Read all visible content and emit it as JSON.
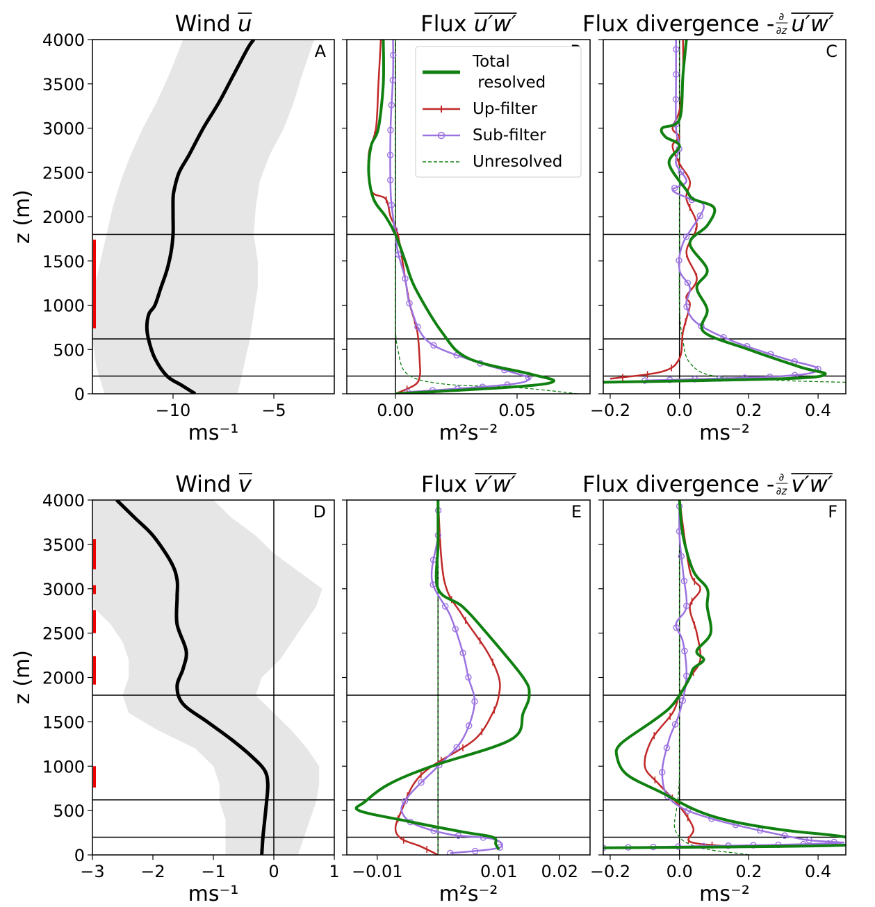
{
  "axis_label_z": "z (m)",
  "legend": {
    "total": "Total",
    "total2": " resolved",
    "up": "Up-filter",
    "sub": "Sub-filter",
    "unres": "Unresolved"
  },
  "colors": {
    "total": "#108010",
    "up": "#c02828",
    "sub": "#9b72e0",
    "unres": "#108010",
    "shade": "#e6e6e6",
    "bar": "#ee0000"
  },
  "hlines_z": [
    1800,
    620,
    200
  ],
  "chart_data": [
    {
      "id": "A",
      "type": "line",
      "title_base": "Wind ",
      "title_sym": "u",
      "xlabel": "ms⁻¹",
      "xlim": [
        -14,
        -2
      ],
      "ylim": [
        0,
        4000
      ],
      "xticks": [
        {
          "v": -10,
          "l": "−10"
        },
        {
          "v": -5,
          "l": "−5"
        }
      ],
      "yticks": [
        0,
        500,
        1000,
        1500,
        2000,
        2500,
        3000,
        3500,
        4000
      ],
      "show_yticks": true,
      "zero_line": false,
      "red_bars": [
        [
          740,
          1740
        ]
      ],
      "shade": {
        "z": [
          0,
          300,
          600,
          900,
          1200,
          1500,
          1800,
          2100,
          2400,
          2700,
          3000,
          3300,
          3600,
          4000
        ],
        "lo": [
          -13.4,
          -13.8,
          -14.0,
          -14.0,
          -13.9,
          -13.6,
          -13.3,
          -13.0,
          -12.6,
          -12.1,
          -11.5,
          -10.8,
          -10.2,
          -9.5
        ],
        "hi": [
          -6.8,
          -6.5,
          -6.2,
          -6.0,
          -5.8,
          -5.8,
          -6.0,
          -5.9,
          -5.7,
          -5.2,
          -4.5,
          -4.0,
          -3.6,
          -3.0
        ]
      },
      "series": [
        {
          "name": "",
          "kind": "mean",
          "x": [
            -8.9,
            -9.6,
            -10.3,
            -10.9,
            -11.2,
            -11.3,
            -11.2,
            -10.9,
            -10.6,
            -10.3,
            -10.1,
            -10.0,
            -10.0,
            -10.0,
            -9.95,
            -9.7,
            -9.2,
            -8.5,
            -7.7,
            -7.0,
            -6.3,
            -6.0
          ],
          "z": [
            0,
            100,
            200,
            400,
            600,
            750,
            900,
            1000,
            1200,
            1400,
            1600,
            1800,
            2000,
            2200,
            2300,
            2500,
            2700,
            3000,
            3300,
            3600,
            3900,
            4000
          ]
        }
      ]
    },
    {
      "id": "B",
      "type": "line",
      "title_base": "Flux ",
      "title_sym": "u′w′",
      "xlabel": "m²s⁻²",
      "xlim": [
        -0.02,
        0.08
      ],
      "ylim": [
        0,
        4000
      ],
      "xticks": [
        {
          "v": 0,
          "l": "0.00"
        },
        {
          "v": 0.05,
          "l": "0.05"
        }
      ],
      "yticks": [
        0,
        500,
        1000,
        1500,
        2000,
        2500,
        3000,
        3500,
        4000
      ],
      "show_yticks": false,
      "zero_line": true,
      "series": [
        {
          "name": "total",
          "x": [
            0.0,
            0.05,
            0.065,
            0.056,
            0.03,
            0.019,
            0.008,
            0.004,
            0.0,
            -0.004,
            -0.009,
            -0.011,
            -0.01,
            -0.007,
            -0.005,
            -0.005
          ],
          "z": [
            0,
            80,
            140,
            220,
            400,
            700,
            1200,
            1500,
            1800,
            2000,
            2200,
            2500,
            2800,
            3000,
            3500,
            4000
          ]
        },
        {
          "name": "up",
          "x": [
            0.0,
            0.008,
            0.01,
            0.01,
            0.009,
            0.006,
            0.004,
            0.001,
            -0.002,
            -0.004,
            -0.01,
            -0.011,
            -0.008,
            -0.007,
            -0.006
          ],
          "z": [
            0,
            100,
            200,
            350,
            700,
            1000,
            1300,
            1800,
            2000,
            2200,
            2300,
            2700,
            3000,
            3500,
            4000
          ]
        },
        {
          "name": "sub",
          "x": [
            0.005,
            0.045,
            0.055,
            0.047,
            0.031,
            0.013,
            0.006,
            0.004,
            0.001,
            0.0,
            -0.001,
            -0.002,
            -0.002,
            -0.001,
            -0.001
          ],
          "z": [
            20,
            100,
            170,
            250,
            380,
            600,
            1000,
            1300,
            1600,
            1800,
            2000,
            2300,
            3000,
            3600,
            4000
          ]
        },
        {
          "name": "unres",
          "x": [
            0.075,
            0.05,
            0.02,
            0.005,
            0.001,
            0.0,
            0.0,
            0.0,
            0.0
          ],
          "z": [
            0,
            70,
            110,
            220,
            500,
            800,
            1500,
            3000,
            4000
          ]
        }
      ],
      "marker_every": 300
    },
    {
      "id": "C",
      "type": "line",
      "title_base": "Flux divergence -",
      "title_sym": "u′w′",
      "xlabel": "ms⁻²",
      "xlim": [
        -0.22,
        0.48
      ],
      "ylim": [
        0,
        4000
      ],
      "xticks": [
        {
          "v": -0.2,
          "l": "−0.2"
        },
        {
          "v": 0,
          "l": "0.0"
        },
        {
          "v": 0.2,
          "l": "0.2"
        },
        {
          "v": 0.4,
          "l": "0.4"
        }
      ],
      "yticks": [
        0,
        500,
        1000,
        1500,
        2000,
        2500,
        3000,
        3500,
        4000
      ],
      "show_yticks": false,
      "zero_line": true,
      "series": [
        {
          "name": "total",
          "x": [
            -0.22,
            0.3,
            0.42,
            0.35,
            0.2,
            0.07,
            0.08,
            0.05,
            0.08,
            0.03,
            0.08,
            0.1,
            0.04,
            0.02,
            -0.03,
            0.0,
            -0.04,
            -0.05,
            0.0,
            0.01,
            0.02
          ],
          "z": [
            130,
            170,
            220,
            300,
            500,
            700,
            950,
            1200,
            1400,
            1700,
            1900,
            2100,
            2200,
            2300,
            2600,
            2800,
            2900,
            3000,
            3100,
            3600,
            4000
          ]
        },
        {
          "name": "up",
          "x": [
            -0.2,
            -0.05,
            0.0,
            0.01,
            0.03,
            0.02,
            0.05,
            0.02,
            0.05,
            0.02,
            0.03,
            0.0,
            -0.02,
            0.0,
            -0.02,
            0.0,
            0.01,
            0.01
          ],
          "z": [
            170,
            250,
            400,
            700,
            1000,
            1100,
            1300,
            1600,
            1900,
            2200,
            2400,
            2600,
            2800,
            2900,
            3000,
            3200,
            3600,
            4000
          ]
        },
        {
          "name": "sub",
          "x": [
            -0.1,
            0.3,
            0.4,
            0.3,
            0.15,
            0.05,
            0.02,
            0.03,
            0.0,
            0.01,
            0.07,
            0.03,
            -0.02,
            0.02,
            -0.01,
            0.0,
            -0.01,
            -0.01,
            -0.01
          ],
          "z": [
            150,
            200,
            280,
            400,
            600,
            800,
            1000,
            1200,
            1400,
            1700,
            2100,
            2200,
            2300,
            2400,
            2600,
            2800,
            3000,
            3600,
            4000
          ]
        },
        {
          "name": "unres",
          "x": [
            0.48,
            0.3,
            0.1,
            0.03,
            0.01,
            0.0,
            0.0,
            0.0
          ],
          "z": [
            130,
            150,
            200,
            350,
            600,
            1000,
            2000,
            4000
          ]
        }
      ],
      "marker_every": 300
    },
    {
      "id": "D",
      "type": "line",
      "title_base": "Wind ",
      "title_sym": "v",
      "xlabel": "ms⁻¹",
      "xlim": [
        -3,
        1
      ],
      "ylim": [
        0,
        4000
      ],
      "xticks": [
        {
          "v": -3,
          "l": "−3"
        },
        {
          "v": -2,
          "l": "−2"
        },
        {
          "v": -1,
          "l": "−1"
        },
        {
          "v": 0,
          "l": "0"
        },
        {
          "v": 1,
          "l": "1"
        }
      ],
      "yticks": [
        0,
        500,
        1000,
        1500,
        2000,
        2500,
        3000,
        3500,
        4000
      ],
      "show_yticks": true,
      "zero_line": true,
      "red_bars": [
        [
          760,
          1000
        ],
        [
          1920,
          2240
        ],
        [
          2500,
          2760
        ],
        [
          2940,
          3040
        ],
        [
          3220,
          3560
        ]
      ],
      "shade": {
        "z": [
          0,
          200,
          400,
          600,
          800,
          1000,
          1200,
          1400,
          1600,
          1800,
          2000,
          2200,
          2400,
          2600,
          2800,
          3000,
          3200,
          3400,
          3600,
          3800,
          4000
        ],
        "lo": [
          -0.8,
          -0.8,
          -0.8,
          -0.9,
          -0.9,
          -1.0,
          -1.3,
          -1.9,
          -2.4,
          -2.5,
          -2.4,
          -2.4,
          -2.5,
          -2.7,
          -3.0,
          -3.0,
          -3.0,
          -3.0,
          -3.0,
          -3.0,
          -3.0
        ],
        "hi": [
          0.4,
          0.5,
          0.6,
          0.7,
          0.75,
          0.75,
          0.55,
          0.3,
          0.0,
          -0.3,
          -0.2,
          0.1,
          0.3,
          0.5,
          0.7,
          0.8,
          0.4,
          0.0,
          -0.3,
          -0.7,
          -1.0
        ]
      },
      "series": [
        {
          "name": "",
          "kind": "mean",
          "x": [
            -0.2,
            -0.18,
            -0.15,
            -0.12,
            -0.1,
            -0.15,
            -0.35,
            -0.7,
            -1.1,
            -1.5,
            -1.6,
            -1.5,
            -1.45,
            -1.6,
            -1.6,
            -1.6,
            -1.7,
            -2.0,
            -2.3,
            -2.6
          ],
          "z": [
            0,
            200,
            400,
            600,
            800,
            950,
            1100,
            1300,
            1500,
            1700,
            1900,
            2100,
            2300,
            2600,
            2900,
            3100,
            3300,
            3600,
            3800,
            4000
          ]
        }
      ]
    },
    {
      "id": "E",
      "type": "line",
      "title_base": "Flux ",
      "title_sym": "v′w′",
      "xlabel": "m²s⁻²",
      "xlim": [
        -0.015,
        0.025
      ],
      "ylim": [
        0,
        4000
      ],
      "xticks": [
        {
          "v": -0.01,
          "l": "−0.01"
        },
        {
          "v": 0.01,
          "l": "0.01"
        },
        {
          "v": 0.02,
          "l": "0.02"
        }
      ],
      "yticks": [
        0,
        500,
        1000,
        1500,
        2000,
        2500,
        3000,
        3500,
        4000
      ],
      "show_yticks": false,
      "zero_line": true,
      "zero_x": 0,
      "series": [
        {
          "name": "total",
          "x": [
            0.01,
            0.0095,
            0.009,
            0.004,
            -0.005,
            -0.013,
            -0.012,
            -0.008,
            -0.001,
            0.012,
            0.014,
            0.015,
            0.014,
            0.008,
            0.004,
            0.0,
            0.0,
            0.0
          ],
          "z": [
            60,
            120,
            200,
            260,
            380,
            500,
            600,
            800,
            1000,
            1300,
            1600,
            1800,
            2000,
            2500,
            2800,
            3000,
            3500,
            4000
          ]
        },
        {
          "name": "up",
          "x": [
            0.0,
            -0.003,
            -0.006,
            -0.007,
            -0.006,
            -0.004,
            -0.001,
            0.006,
            0.009,
            0.01,
            0.01,
            0.008,
            0.004,
            0.001,
            0.0
          ],
          "z": [
            0,
            100,
            180,
            300,
            500,
            800,
            1000,
            1300,
            1600,
            1800,
            2000,
            2300,
            2700,
            3100,
            4000
          ]
        },
        {
          "name": "sub",
          "x": [
            0.002,
            0.01,
            0.009,
            0.002,
            -0.004,
            -0.006,
            -0.005,
            -0.003,
            0.0,
            0.004,
            0.006,
            0.005,
            0.004,
            0.002,
            -0.001,
            0.0,
            0.0
          ],
          "z": [
            20,
            80,
            180,
            230,
            350,
            500,
            650,
            800,
            1000,
            1300,
            1700,
            2000,
            2300,
            2700,
            3100,
            3600,
            4000
          ]
        },
        {
          "name": "unres",
          "x": [
            0.0,
            0.0,
            0.0,
            0.0
          ],
          "z": [
            0,
            500,
            2000,
            4000
          ]
        }
      ],
      "marker_every": 300
    },
    {
      "id": "F",
      "type": "line",
      "title_base": "Flux divergence -",
      "title_sym": "v′w′",
      "xlabel": "ms⁻²",
      "xlim": [
        -0.22,
        0.48
      ],
      "ylim": [
        0,
        4000
      ],
      "xticks": [
        {
          "v": -0.2,
          "l": "−0.2"
        },
        {
          "v": 0,
          "l": "0.0"
        },
        {
          "v": 0.2,
          "l": "0.2"
        },
        {
          "v": 0.4,
          "l": "0.4"
        }
      ],
      "yticks": [
        0,
        500,
        1000,
        1500,
        2000,
        2500,
        3000,
        3500,
        4000
      ],
      "show_yticks": false,
      "zero_line": true,
      "series": [
        {
          "name": "total",
          "x": [
            -0.22,
            0.48,
            0.48,
            0.3,
            0.15,
            0.05,
            -0.05,
            -0.15,
            -0.18,
            -0.17,
            -0.08,
            -0.03,
            0.0,
            0.03,
            0.04,
            0.07,
            0.05,
            0.09,
            0.08,
            0.08,
            0.04,
            0.01,
            0.0
          ],
          "z": [
            80,
            110,
            200,
            280,
            380,
            500,
            700,
            900,
            1100,
            1250,
            1500,
            1650,
            1800,
            2000,
            2100,
            2200,
            2300,
            2500,
            2800,
            3000,
            3200,
            3600,
            4000
          ]
        },
        {
          "name": "up",
          "x": [
            0.13,
            0.03,
            0.04,
            0.0,
            -0.06,
            -0.1,
            -0.08,
            -0.02,
            0.0,
            0.03,
            0.06,
            0.05,
            0.03,
            0.06,
            0.03,
            0.0
          ],
          "z": [
            100,
            150,
            300,
            550,
            800,
            1000,
            1300,
            1600,
            1800,
            2000,
            2200,
            2500,
            2800,
            3000,
            3200,
            4000
          ]
        },
        {
          "name": "sub",
          "x": [
            -0.22,
            0.44,
            0.35,
            0.1,
            -0.02,
            -0.05,
            -0.03,
            0.0,
            0.02,
            0.01,
            -0.01,
            0.02,
            0.01,
            0.0,
            0.0
          ],
          "z": [
            80,
            130,
            180,
            400,
            600,
            900,
            1300,
            1600,
            2000,
            2400,
            2600,
            2800,
            3200,
            3600,
            4000
          ]
        },
        {
          "name": "unres",
          "x": [
            0.2,
            0.0,
            0.0,
            0.0
          ],
          "z": [
            0,
            200,
            1000,
            4000
          ]
        }
      ],
      "marker_every": 300
    }
  ]
}
